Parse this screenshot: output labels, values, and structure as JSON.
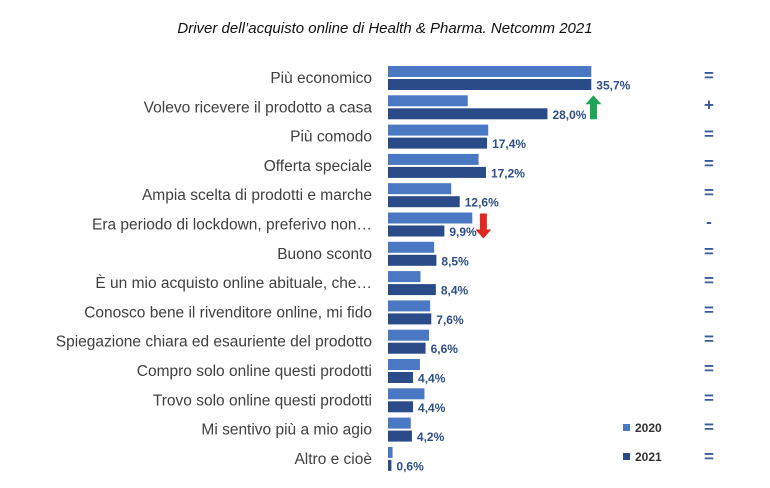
{
  "chart_data": {
    "type": "bar",
    "orientation": "horizontal",
    "title": "Driver dell’acquisto online di Health & Pharma. Netcomm 2021",
    "categories": [
      "Più economico",
      "Volevo ricevere il prodotto a casa",
      "Più comodo",
      "Offerta speciale",
      "Ampia scelta di prodotti e marche",
      "Era periodo di lockdown, preferivo non…",
      "Buono sconto",
      "È un mio acquisto online abituale, che…",
      "Conosco bene il rivenditore online, mi fido",
      "Spiegazione chiara ed esauriente del prodotto",
      "Compro solo online questi prodotti",
      "Trovo solo online questi prodotti",
      "Mi sentivo più a mio agio",
      "Altro e cioè"
    ],
    "series": [
      {
        "name": "2020",
        "color": "#4a78c2",
        "values": [
          35.7,
          14.0,
          17.6,
          15.9,
          11.1,
          14.8,
          8.1,
          5.7,
          7.4,
          7.2,
          5.6,
          6.4,
          4.0,
          0.8
        ]
      },
      {
        "name": "2021",
        "color": "#2a4b87",
        "values": [
          35.7,
          28.0,
          17.4,
          17.2,
          12.6,
          9.9,
          8.5,
          8.4,
          7.6,
          6.6,
          4.4,
          4.4,
          4.2,
          0.6
        ],
        "labels": [
          "35,7%",
          "28,0%",
          "17,4%",
          "17,2%",
          "12,6%",
          "9,9%",
          "8,5%",
          "8,4%",
          "7,6%",
          "6,6%",
          "4,4%",
          "4,4%",
          "4,2%",
          "0,6%"
        ]
      }
    ],
    "trend": [
      "=",
      "+",
      "=",
      "=",
      "=",
      "-",
      "=",
      "=",
      "=",
      "=",
      "=",
      "=",
      "=",
      "="
    ],
    "arrows": [
      {
        "index": 1,
        "direction": "up",
        "color": "#1fa55a"
      },
      {
        "index": 5,
        "direction": "down",
        "color": "#e02a21"
      }
    ],
    "legend_position": "bottom-right",
    "grid": false,
    "xlim": [
      0,
      36
    ]
  }
}
